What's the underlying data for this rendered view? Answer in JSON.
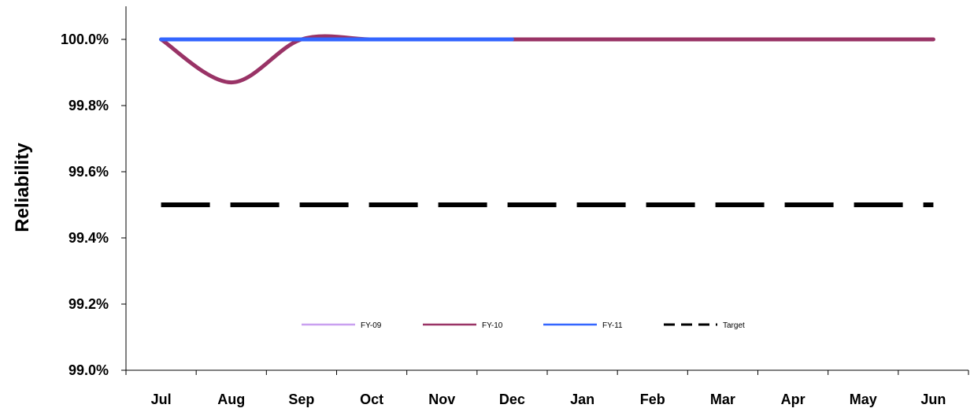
{
  "chart_data": {
    "type": "line",
    "title": "",
    "xlabel": "",
    "ylabel": "Reliability",
    "categories": [
      "Jul",
      "Aug",
      "Sep",
      "Oct",
      "Nov",
      "Dec",
      "Jan",
      "Feb",
      "Mar",
      "Apr",
      "May",
      "Jun"
    ],
    "ylim": [
      99.0,
      100.1
    ],
    "yticks": [
      "99.0%",
      "99.2%",
      "99.4%",
      "99.6%",
      "99.8%",
      "100.0%"
    ],
    "ytick_values": [
      99.0,
      99.2,
      99.4,
      99.6,
      99.8,
      100.0
    ],
    "grid": false,
    "legend_position": "bottom",
    "series": [
      {
        "name": "FY-09",
        "color": "#c9a0f0",
        "style": "solid",
        "values": [
          null,
          null,
          null,
          null,
          null,
          null,
          null,
          null,
          null,
          null,
          null,
          null
        ]
      },
      {
        "name": "FY-10",
        "color": "#993366",
        "style": "solid",
        "values": [
          100.0,
          99.87,
          100.0,
          100.0,
          100.0,
          100.0,
          100.0,
          100.0,
          100.0,
          100.0,
          100.0,
          100.0
        ]
      },
      {
        "name": "FY-11",
        "color": "#3366ff",
        "style": "solid",
        "values": [
          100.0,
          100.0,
          100.0,
          100.0,
          100.0,
          100.0,
          null,
          null,
          null,
          null,
          null,
          null
        ]
      },
      {
        "name": "Target",
        "color": "#000000",
        "style": "dashed",
        "values": [
          99.5,
          99.5,
          99.5,
          99.5,
          99.5,
          99.5,
          99.5,
          99.5,
          99.5,
          99.5,
          99.5,
          99.5
        ]
      }
    ]
  }
}
